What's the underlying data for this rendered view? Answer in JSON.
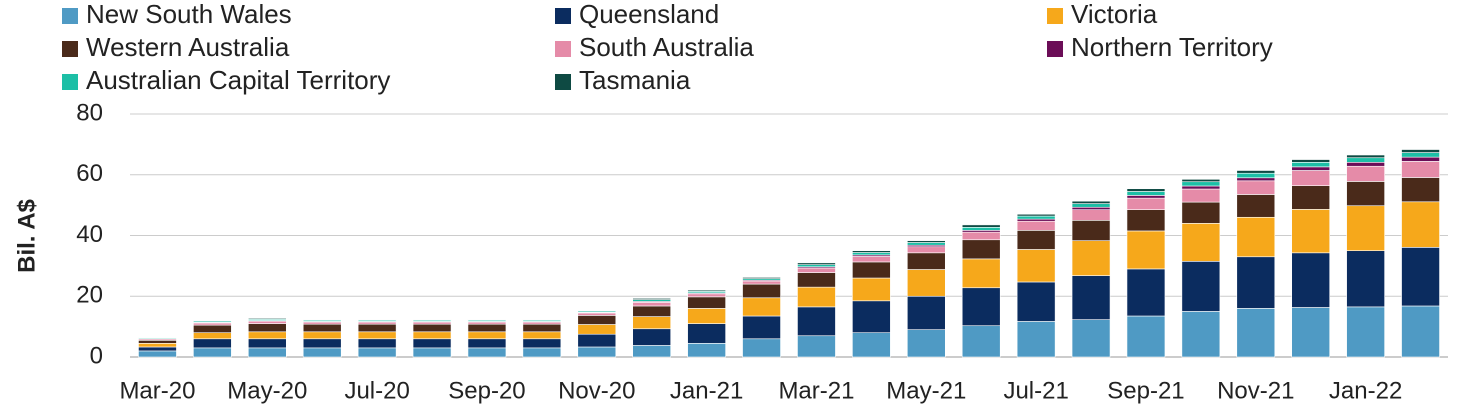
{
  "chart_data": {
    "type": "stacked_bar",
    "y_label": "Bil. A$",
    "categories": [
      "Mar-20",
      null,
      "May-20",
      null,
      "Jul-20",
      null,
      "Sep-20",
      null,
      "Nov-20",
      null,
      "Jan-21",
      null,
      "Mar-21",
      null,
      "May-21",
      null,
      "Jul-21",
      null,
      "Sep-21",
      null,
      "Nov-21",
      null,
      "Jan-22",
      null
    ],
    "series": [
      {
        "name": "New South Wales",
        "color": "#4f9ac4",
        "values": [
          2,
          3,
          3,
          3,
          3,
          3,
          3,
          3,
          3.3,
          3.8,
          4.5,
          6,
          7,
          8,
          9,
          10.3,
          11.7,
          12.3,
          13.5,
          15,
          16,
          16.3,
          16.5,
          16.8
        ]
      },
      {
        "name": "Queensland",
        "color": "#0b2c5f",
        "values": [
          1.3,
          3,
          3,
          3,
          3,
          3,
          3,
          3,
          4.2,
          5.5,
          6.5,
          7.5,
          9.5,
          10.5,
          11,
          12.5,
          13,
          14.5,
          15.5,
          16.5,
          17,
          18,
          18.5,
          19.3
        ]
      },
      {
        "name": "Victoria",
        "color": "#f6a81b",
        "values": [
          1.2,
          2,
          2.3,
          2.3,
          2.3,
          2.3,
          2.3,
          2.3,
          3.2,
          4,
          5,
          6,
          6.5,
          7.5,
          8.8,
          9.5,
          10.7,
          11.5,
          12.5,
          12.5,
          13,
          14.3,
          14.8,
          15
        ]
      },
      {
        "name": "Western Australia",
        "color": "#4a2a1a",
        "values": [
          1,
          2.5,
          2.7,
          2.5,
          2.5,
          2.5,
          2.5,
          2.5,
          3,
          3.5,
          3.8,
          4.5,
          4.8,
          5.3,
          5.5,
          6.3,
          6.3,
          6.7,
          7,
          7,
          7.5,
          7.8,
          8,
          8
        ]
      },
      {
        "name": "South Australia",
        "color": "#e58ba8",
        "values": [
          0.4,
          0.7,
          0.8,
          0.7,
          0.7,
          0.7,
          0.7,
          0.7,
          0.8,
          1.2,
          1,
          1,
          1.5,
          1.8,
          2,
          2.5,
          3,
          3.5,
          3.8,
          4.3,
          4.5,
          5,
          5,
          5.3
        ]
      },
      {
        "name": "Northern Territory",
        "color": "#6b0d57",
        "values": [
          0.1,
          0.2,
          0.2,
          0.2,
          0.2,
          0.2,
          0.2,
          0.2,
          0.2,
          0.3,
          0.3,
          0.3,
          0.4,
          0.5,
          0.5,
          0.6,
          0.7,
          0.8,
          0.9,
          1,
          1,
          1.2,
          1.3,
          1.4
        ]
      },
      {
        "name": "Australian Capital Territory",
        "color": "#1cbfa6",
        "values": [
          0.3,
          0.4,
          0.4,
          0.4,
          0.4,
          0.4,
          0.4,
          0.4,
          0.4,
          0.6,
          0.5,
          0.5,
          0.7,
          0.8,
          0.9,
          1,
          1,
          1.2,
          1.3,
          1.4,
          1.5,
          1.5,
          1.5,
          1.5
        ]
      },
      {
        "name": "Tasmania",
        "color": "#0e4a43",
        "values": [
          0.2,
          0.2,
          0.3,
          0.2,
          0.2,
          0.2,
          0.2,
          0.2,
          0.2,
          0.4,
          0.4,
          0.4,
          0.6,
          0.6,
          0.6,
          0.8,
          0.6,
          0.8,
          0.9,
          0.8,
          0.9,
          0.9,
          0.9,
          1
        ]
      }
    ],
    "ylim": [
      0,
      80
    ],
    "yticks": [
      0,
      20,
      40,
      60,
      80
    ],
    "grid": true
  }
}
